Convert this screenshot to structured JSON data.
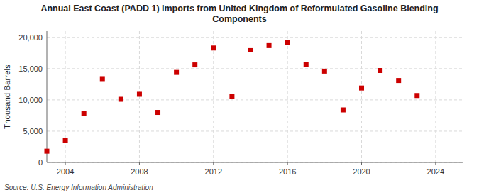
{
  "chart_data": {
    "type": "scatter",
    "title": "Annual East Coast (PADD 1) Imports from United Kingdom of Reformulated Gasoline Blending\nComponents",
    "ylabel": "Thousand Barrels",
    "source": "Source: U.S. Energy Information Administration",
    "x": [
      2003,
      2004,
      2005,
      2006,
      2007,
      2008,
      2009,
      2010,
      2011,
      2012,
      2013,
      2014,
      2015,
      2016,
      2017,
      2018,
      2019,
      2020,
      2021,
      2022,
      2023
    ],
    "values": [
      1800,
      3500,
      7800,
      13400,
      10100,
      10900,
      8000,
      14400,
      15600,
      18300,
      10600,
      18000,
      18800,
      19200,
      15700,
      14600,
      8400,
      11900,
      14700,
      13100,
      10700
    ],
    "color": "#cc0000",
    "marker": "square",
    "xlim": [
      2003.0,
      2025.5
    ],
    "ylim": [
      0,
      21000
    ],
    "xticks": [
      2004,
      2008,
      2012,
      2016,
      2020,
      2024
    ],
    "yticks": [
      0,
      {
        "value": 5000,
        "label": "5,000"
      },
      {
        "value": 10000,
        "label": "10,000"
      },
      {
        "value": 15000,
        "label": "15,000"
      },
      {
        "value": 20000,
        "label": "20,000"
      }
    ],
    "grid": true
  }
}
